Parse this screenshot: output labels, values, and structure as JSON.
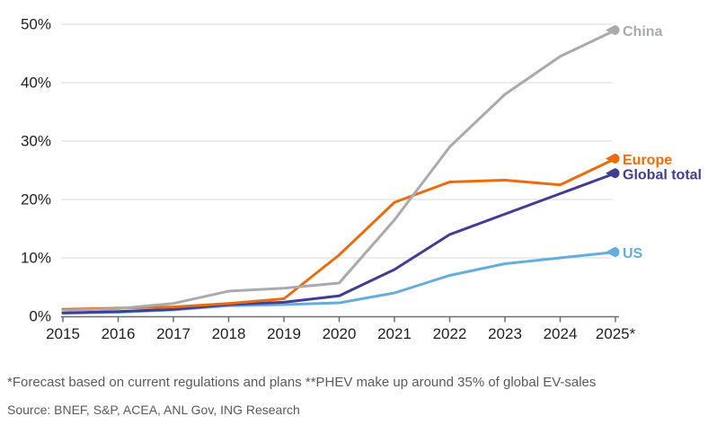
{
  "chart_data": {
    "type": "line",
    "x_labels": [
      "2015",
      "2016",
      "2017",
      "2018",
      "2019",
      "2020",
      "2021",
      "2022",
      "2023",
      "2024",
      "2025*"
    ],
    "y_tick_labels": [
      "0%",
      "10%",
      "20%",
      "30%",
      "40%",
      "50%"
    ],
    "y_tick_values": [
      0,
      10,
      20,
      30,
      40,
      50
    ],
    "ylim": [
      0,
      52
    ],
    "grid": "horizontal-only",
    "legend_position": "end-of-line-labels",
    "series": [
      {
        "name": "US",
        "color": "#64addc",
        "values": [
          0.5,
          0.7,
          1.1,
          1.8,
          2.0,
          2.3,
          4.0,
          7.0,
          9.0,
          10.0,
          11.0
        ]
      },
      {
        "name": "Global total",
        "color": "#413d90",
        "values": [
          0.6,
          0.8,
          1.2,
          2.0,
          2.4,
          3.5,
          8.0,
          14.0,
          17.5,
          21.0,
          24.5
        ]
      },
      {
        "name": "Europe",
        "color": "#ec6c0d",
        "values": [
          1.2,
          1.4,
          1.6,
          2.2,
          3.0,
          10.5,
          19.5,
          23.0,
          23.3,
          22.5,
          27.0
        ]
      },
      {
        "name": "China",
        "color": "#a8aaad",
        "values": [
          1.0,
          1.3,
          2.2,
          4.3,
          4.8,
          5.7,
          16.5,
          29.0,
          38.0,
          44.5,
          49.0
        ]
      }
    ]
  },
  "colors": {
    "gridline": "#d9d9d9",
    "axis_line": "#6e6e6e",
    "tick_label": "#1f1f1f",
    "footnote_text": "#595a5c"
  },
  "footer": {
    "note": "*Forecast based on current regulations and plans **PHEV make up around 35% of global EV-sales",
    "source": "Source: BNEF, S&P, ACEA, ANL Gov, ING Research"
  }
}
